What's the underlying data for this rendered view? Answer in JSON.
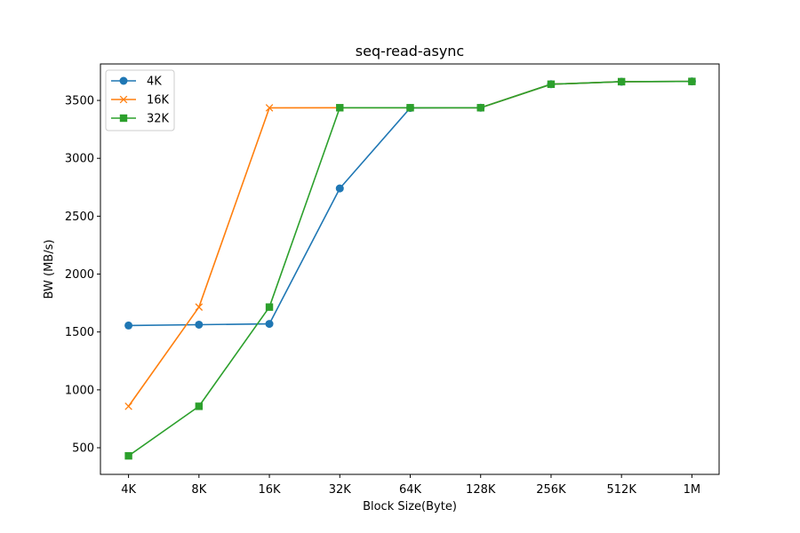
{
  "chart_data": {
    "type": "line",
    "title": "seq-read-async",
    "xlabel": "Block Size(Byte)",
    "ylabel": "BW (MB/s)",
    "categories": [
      "4K",
      "8K",
      "16K",
      "32K",
      "64K",
      "128K",
      "256K",
      "512K",
      "1M"
    ],
    "ylim": [
      270,
      3815
    ],
    "yticks": [
      500,
      1000,
      1500,
      2000,
      2500,
      3000,
      3500
    ],
    "grid": false,
    "legend_position": "top-left",
    "series": [
      {
        "name": "4K",
        "color": "#1f77b4",
        "marker": "circle",
        "values": [
          1556,
          1563,
          1570,
          2740,
          3435,
          3437,
          3640,
          3662,
          3664
        ]
      },
      {
        "name": "16K",
        "color": "#ff7f0e",
        "marker": "x",
        "values": [
          858,
          1715,
          3436,
          3437,
          3437,
          3437,
          3640,
          3662,
          3664
        ]
      },
      {
        "name": "32K",
        "color": "#2ca02c",
        "marker": "square",
        "values": [
          430,
          858,
          1715,
          3437,
          3437,
          3437,
          3640,
          3662,
          3664
        ]
      }
    ]
  }
}
